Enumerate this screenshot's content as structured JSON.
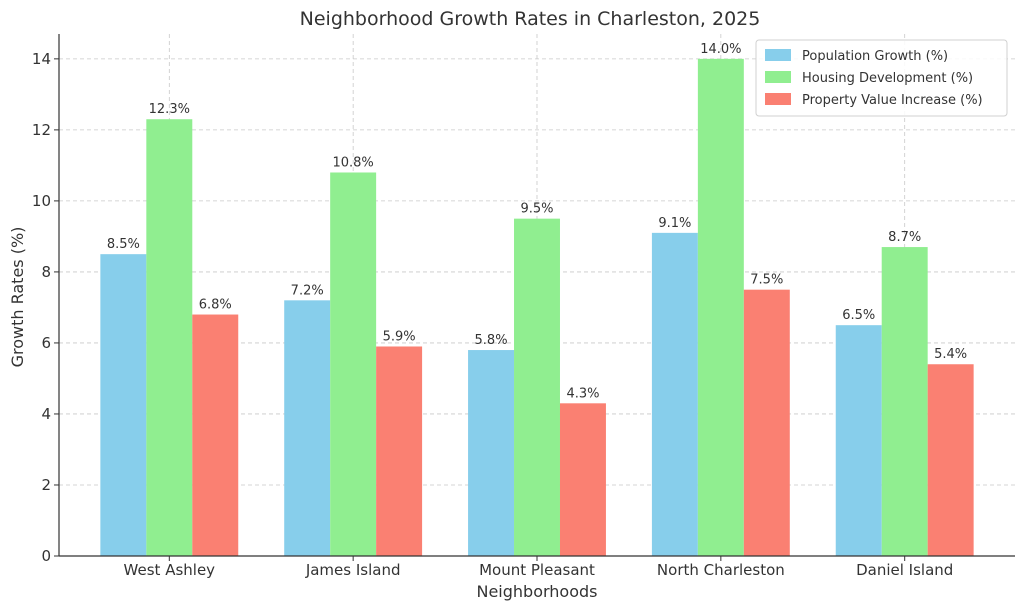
{
  "chart_data": {
    "type": "bar",
    "title": "Neighborhood Growth Rates in Charleston, 2025",
    "xlabel": "Neighborhoods",
    "ylabel": "Growth Rates (%)",
    "categories": [
      "West Ashley",
      "James Island",
      "Mount Pleasant",
      "North Charleston",
      "Daniel Island"
    ],
    "series": [
      {
        "name": "Population Growth (%)",
        "color": "#87CEEB",
        "values": [
          8.5,
          7.2,
          5.8,
          9.1,
          6.5
        ],
        "labels": [
          "8.5%",
          "7.2%",
          "5.8%",
          "9.1%",
          "6.5%"
        ]
      },
      {
        "name": "Housing Development (%)",
        "color": "#90EE90",
        "values": [
          12.3,
          10.8,
          9.5,
          14.0,
          8.7
        ],
        "labels": [
          "12.3%",
          "10.8%",
          "9.5%",
          "14.0%",
          "8.7%"
        ]
      },
      {
        "name": "Property Value Increase (%)",
        "color": "#FA8072",
        "values": [
          6.8,
          5.9,
          4.3,
          7.5,
          5.4
        ],
        "labels": [
          "6.8%",
          "5.9%",
          "4.3%",
          "7.5%",
          "5.4%"
        ]
      }
    ],
    "ylim": [
      0,
      14.7
    ],
    "yticks": [
      0,
      2,
      4,
      6,
      8,
      10,
      12,
      14
    ],
    "ytick_labels": [
      "0",
      "2",
      "4",
      "6",
      "8",
      "10",
      "12",
      "14"
    ],
    "grid": true,
    "legend_position": "top-right"
  }
}
